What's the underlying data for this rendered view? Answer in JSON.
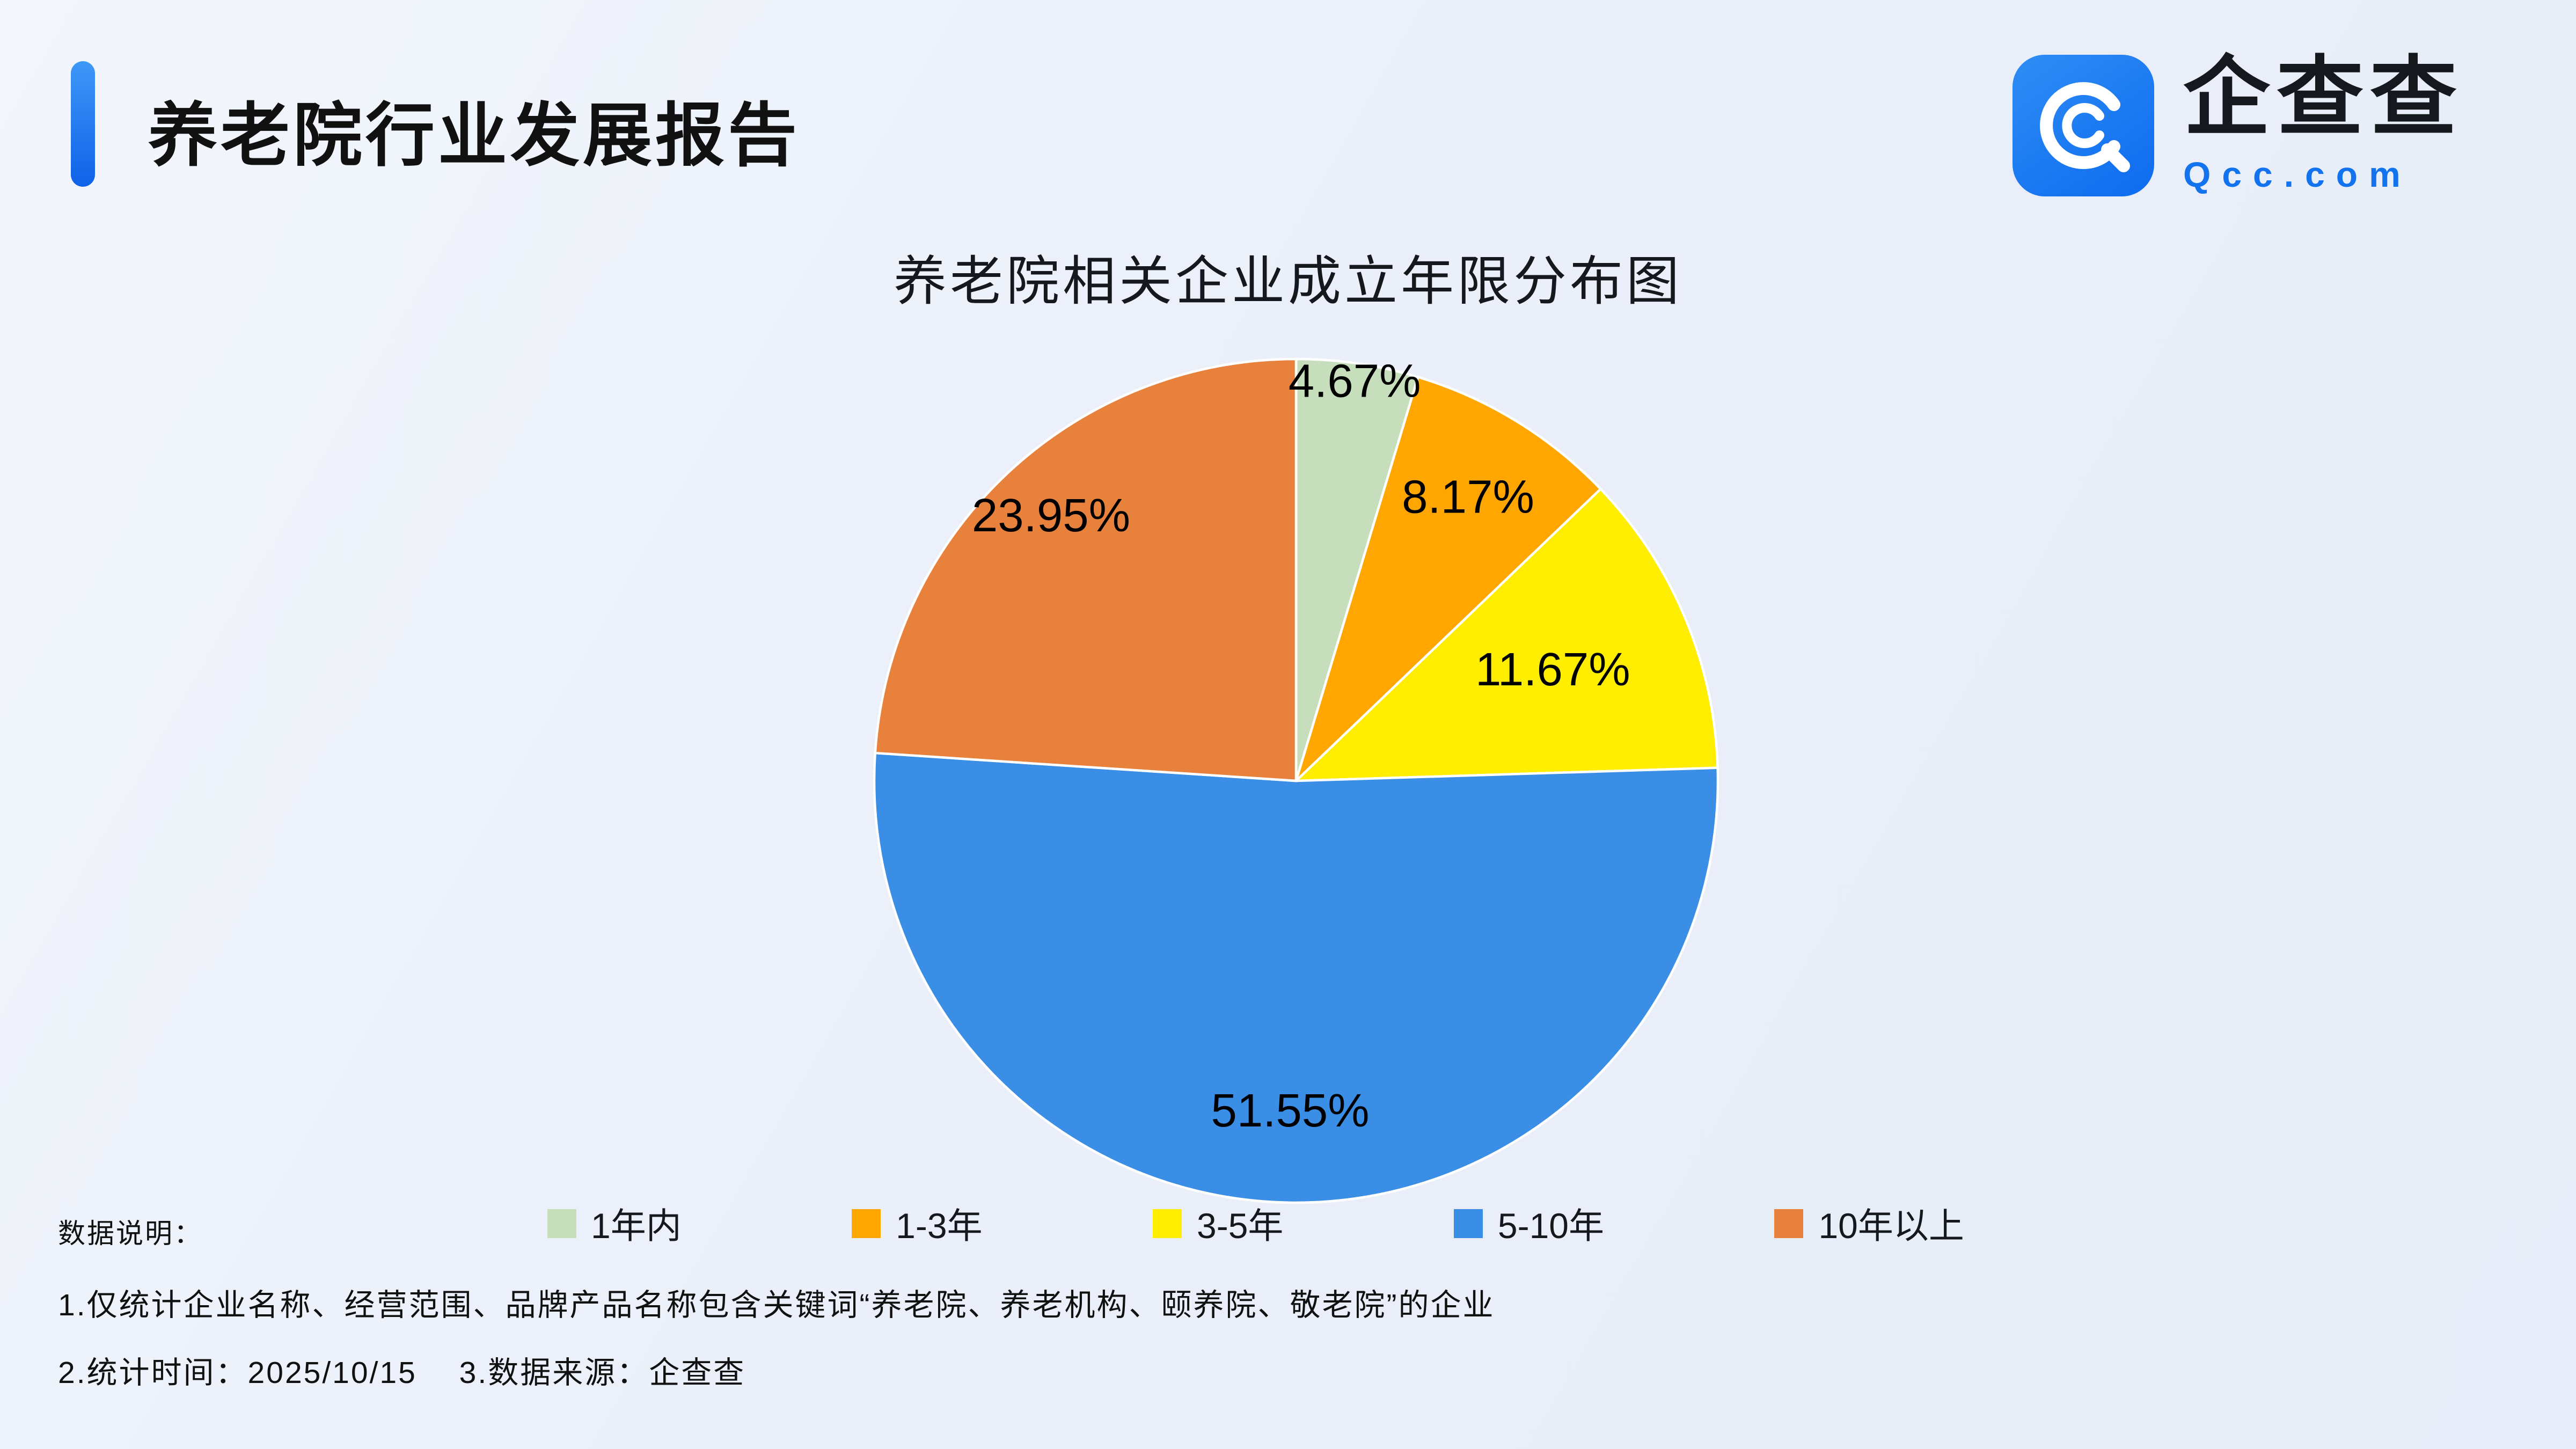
{
  "header": {
    "title": "养老院行业发展报告"
  },
  "logo": {
    "name": "企查查",
    "domain": "Qcc.com"
  },
  "chart_data": {
    "type": "pie",
    "title": "养老院相关企业成立年限分布图",
    "categories": [
      "1年内",
      "1-3年",
      "3-5年",
      "5-10年",
      "10年以上"
    ],
    "values": [
      4.67,
      8.17,
      11.67,
      51.55,
      23.95
    ],
    "labels": [
      "4.67%",
      "8.17%",
      "11.67%",
      "51.55%",
      "23.95%"
    ],
    "colors": [
      "#c6debb",
      "#ffa600",
      "#ffee00",
      "#3a8ee6",
      "#e8813c"
    ],
    "start_angle_deg": 0,
    "clockwise": true,
    "label_radius_frac": [
      0.95,
      0.78,
      0.66,
      0.79,
      0.85
    ],
    "legend_position": "bottom",
    "center": [
      805,
      485
    ],
    "radius": 262
  },
  "footer": {
    "note_label": "数据说明：",
    "note1": "1.仅统计企业名称、经营范围、品牌产品名称包含关键词“养老院、养老机构、颐养院、敬老院”的企业",
    "note2": "2.统计时间：2025/10/15　 3.数据来源：企查查"
  }
}
